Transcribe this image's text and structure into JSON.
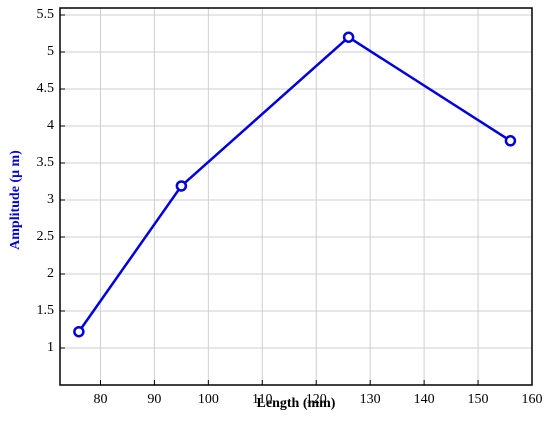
{
  "chart_data": {
    "type": "line",
    "x_label": "Length (mm)",
    "y_label": "Amplitude (μ m)",
    "x": [
      76,
      95,
      126,
      156
    ],
    "series": [
      {
        "color": "#0000dd",
        "values": [
          1.22,
          3.19,
          5.2,
          3.8
        ]
      }
    ],
    "xlim": [
      72.5,
      160
    ],
    "xticks": [
      80,
      90,
      100,
      110,
      120,
      130,
      140,
      150,
      160
    ],
    "ylim": [
      0.5,
      5.5
    ],
    "yticks": [
      1,
      1.5,
      2,
      2.5,
      3,
      3.5,
      4,
      4.5,
      5,
      5.5
    ],
    "grid": true
  }
}
